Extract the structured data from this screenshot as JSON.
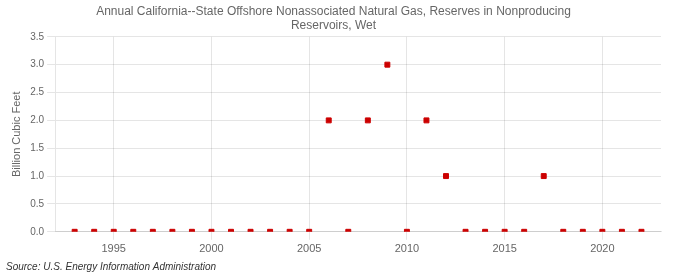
{
  "chart_data": {
    "type": "scatter",
    "title": "Annual California--State Offshore Nonassociated Natural Gas, Reserves in Nonproducing\nReservoirs, Wet",
    "ylabel": "Billion Cubic Feet",
    "source": "Source: U.S. Energy Information Administration",
    "x": [
      1993,
      1994,
      1995,
      1996,
      1997,
      1998,
      1999,
      2000,
      2001,
      2002,
      2003,
      2004,
      2005,
      2006,
      2007,
      2008,
      2009,
      2010,
      2011,
      2012,
      2013,
      2014,
      2015,
      2016,
      2017,
      2018,
      2019,
      2020,
      2021,
      2022
    ],
    "values": [
      0.0,
      0.0,
      0.0,
      0.0,
      0.0,
      0.0,
      0.0,
      0.0,
      0.0,
      0.0,
      0.0,
      0.0,
      0.0,
      2.0,
      0.0,
      2.0,
      3.0,
      0.0,
      2.0,
      1.0,
      0.0,
      0.0,
      0.0,
      0.0,
      1.0,
      0.0,
      0.0,
      0.0,
      0.0,
      0.0
    ],
    "color": "#cc0000",
    "marker": "square",
    "xlim": [
      1992,
      2023
    ],
    "ylim": [
      0,
      3.5
    ],
    "xticks": [
      1995,
      2000,
      2005,
      2010,
      2015,
      2020
    ],
    "yticks": [
      {
        "value": 0.0,
        "label": "0.0"
      },
      {
        "value": 0.5,
        "label": "0.5"
      },
      {
        "value": 1.0,
        "label": "1.0"
      },
      {
        "value": 1.5,
        "label": "1.5"
      },
      {
        "value": 2.0,
        "label": "2.0"
      },
      {
        "value": 2.5,
        "label": "2.5"
      },
      {
        "value": 3.0,
        "label": "3.0"
      },
      {
        "value": 3.5,
        "label": "3.5"
      }
    ],
    "grid": true
  }
}
